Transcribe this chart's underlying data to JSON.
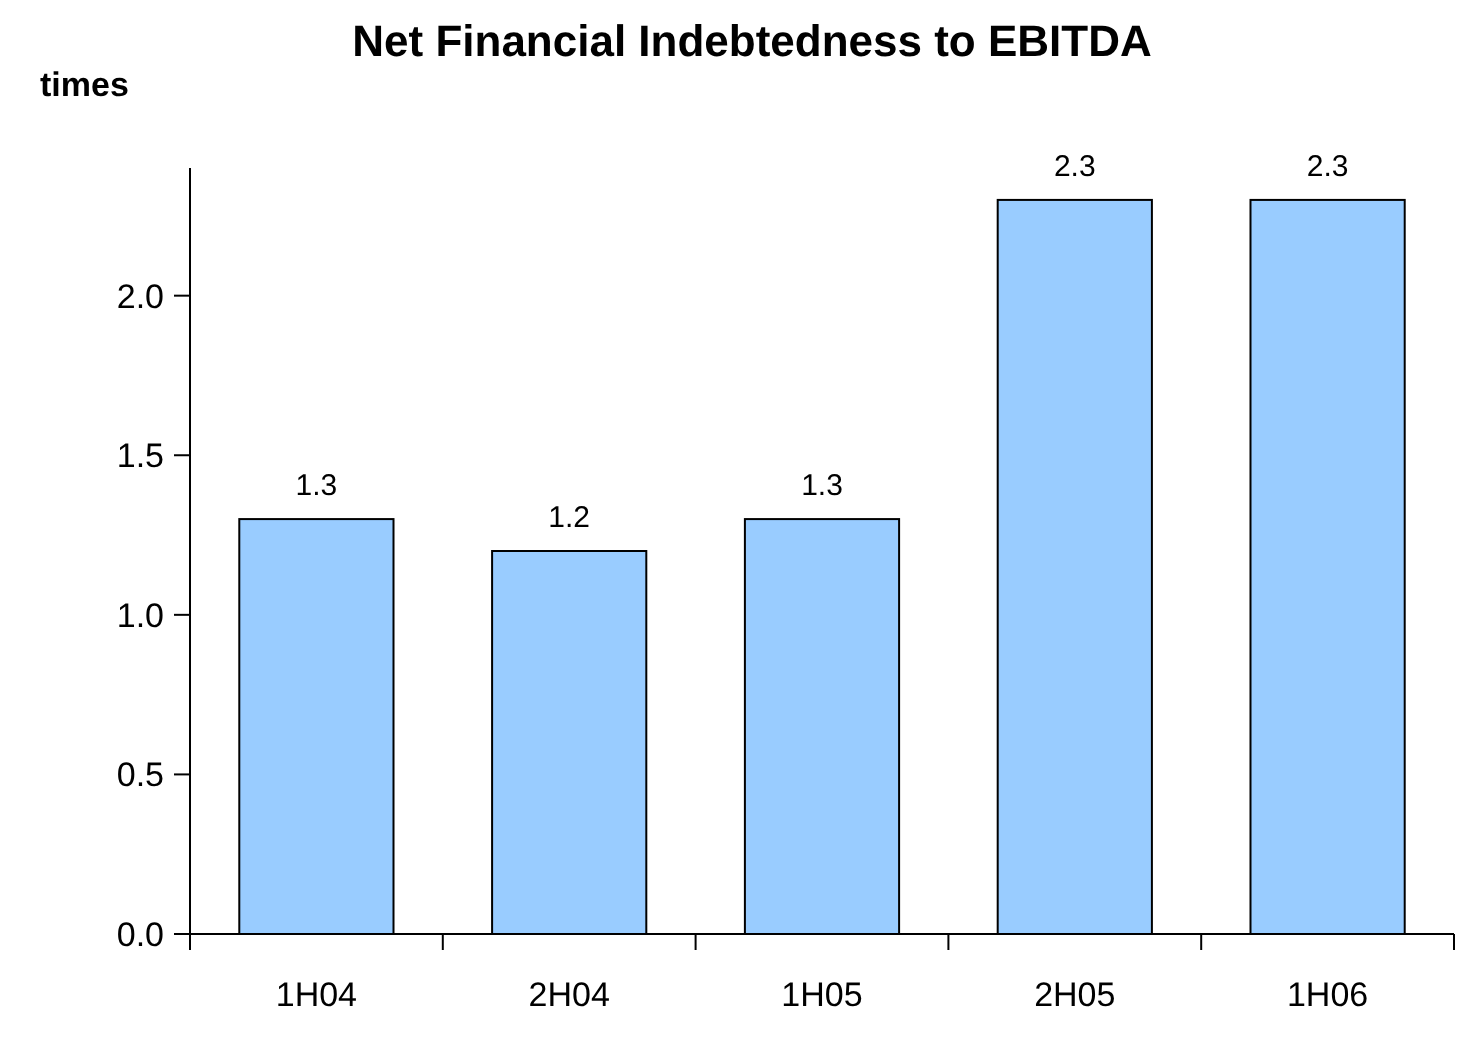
{
  "chart_data": {
    "type": "bar",
    "title": "Net Financial Indebtedness to EBITDA",
    "ylabel": "times",
    "categories": [
      "1H04",
      "2H04",
      "1H05",
      "2H05",
      "1H06"
    ],
    "values": [
      1.3,
      1.2,
      1.3,
      2.3,
      2.3
    ],
    "color": "#99ccff",
    "ylim": [
      0,
      2.4
    ],
    "yticks": [
      {
        "value": 0,
        "label": "0.0"
      },
      0.5,
      {
        "value": 1,
        "label": "1.0"
      },
      1.5,
      {
        "value": 2,
        "label": "2.0"
      }
    ],
    "data_labels": true
  }
}
